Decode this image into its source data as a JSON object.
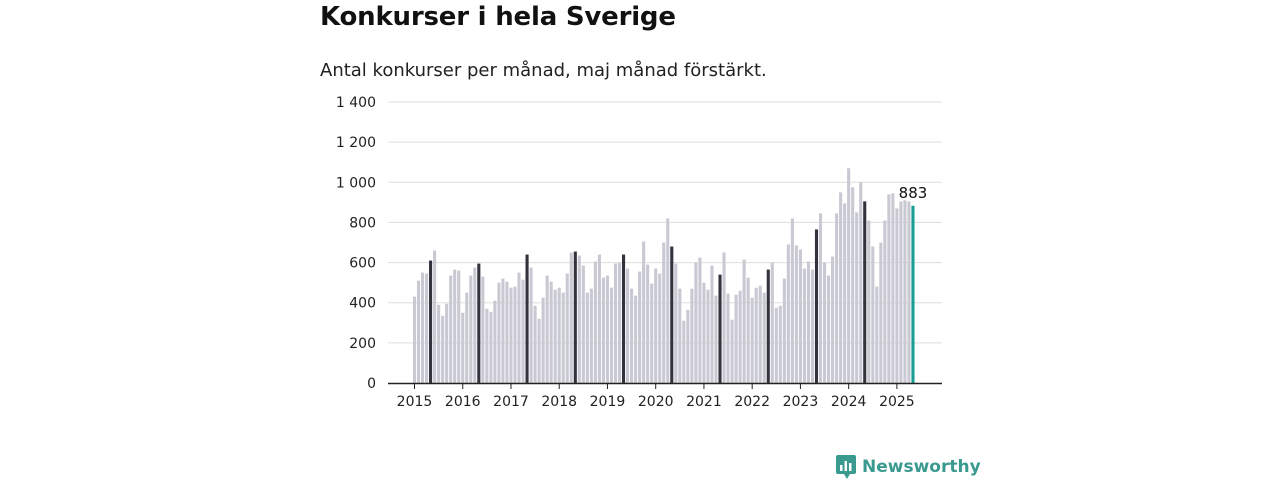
{
  "title": "Konkurser i hela Sverige",
  "subtitle": "Antal konkurser per månad, maj månad förstärkt.",
  "brand": {
    "name": "Newsworthy",
    "color": "#3a9a8f"
  },
  "colors": {
    "bar": "#c9c9d3",
    "highlight": "#33333d",
    "latest": "#1a9e93",
    "grid": "#dddddd",
    "axis": "#222222"
  },
  "chart_data": {
    "type": "bar",
    "ylim": [
      0,
      1400
    ],
    "yticks": [
      0,
      200,
      400,
      600,
      800,
      1000,
      1200,
      1400
    ],
    "ytick_labels": [
      "0",
      "200",
      "400",
      "600",
      "800",
      "1 000",
      "1 200",
      "1 400"
    ],
    "xtick_labels": [
      "2015",
      "2016",
      "2017",
      "2018",
      "2019",
      "2020",
      "2021",
      "2022",
      "2023",
      "2024",
      "2025"
    ],
    "start": "2015-01",
    "highlight_month": "05",
    "values": [
      430,
      510,
      550,
      545,
      610,
      660,
      390,
      335,
      395,
      535,
      565,
      560,
      350,
      450,
      535,
      575,
      595,
      530,
      370,
      355,
      410,
      500,
      520,
      505,
      475,
      480,
      550,
      515,
      640,
      575,
      385,
      320,
      425,
      535,
      505,
      465,
      475,
      450,
      545,
      650,
      655,
      635,
      585,
      450,
      470,
      605,
      640,
      525,
      535,
      475,
      595,
      600,
      640,
      570,
      470,
      435,
      555,
      705,
      590,
      495,
      570,
      545,
      700,
      820,
      680,
      595,
      470,
      310,
      365,
      470,
      600,
      625,
      500,
      465,
      585,
      435,
      540,
      650,
      445,
      315,
      440,
      460,
      615,
      525,
      425,
      475,
      485,
      450,
      565,
      600,
      375,
      385,
      520,
      690,
      820,
      685,
      665,
      570,
      605,
      565,
      765,
      845,
      600,
      535,
      630,
      845,
      950,
      895,
      1070,
      975,
      850,
      1000,
      905,
      810,
      680,
      480,
      700,
      810,
      940,
      945,
      870,
      905,
      910,
      905,
      883
    ],
    "annotation": "883"
  }
}
